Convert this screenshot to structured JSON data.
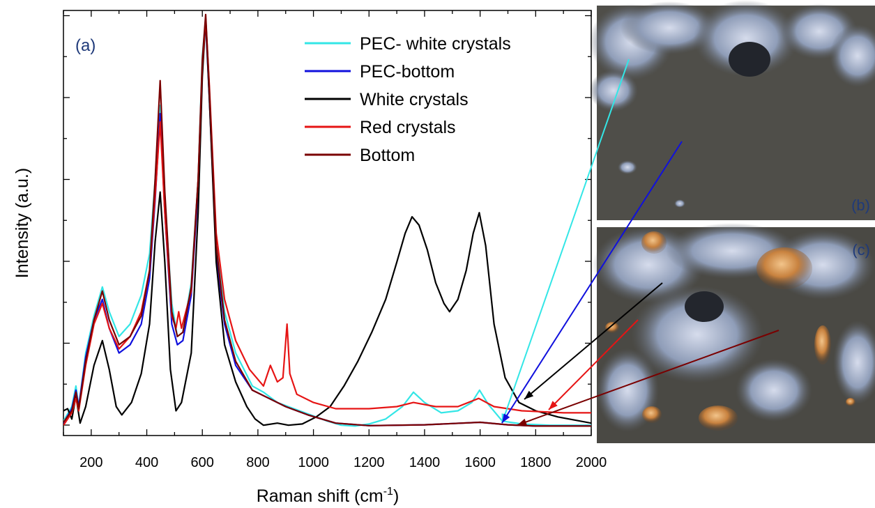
{
  "chart_data": {
    "type": "line",
    "panel_label": "(a)",
    "xlabel": "Raman shift (cm",
    "xlabel_sup": "-1",
    "xlabel_tail": ")",
    "ylabel": "Intensity (a.u.)",
    "xlim": [
      100,
      2000
    ],
    "ylim": [
      -0.02,
      1.01
    ],
    "x_ticks": [
      "200",
      "400",
      "600",
      "800",
      "1000",
      "1200",
      "1400",
      "1600",
      "1800",
      "2000"
    ],
    "y_tick_labels_shown": false,
    "legend_position": "top-right",
    "series": [
      {
        "name": "PEC- white crystals",
        "color": "#33e6e6",
        "points": [
          [
            100,
            0.015
          ],
          [
            130,
            0.05
          ],
          [
            145,
            0.1
          ],
          [
            155,
            0.05
          ],
          [
            180,
            0.18
          ],
          [
            210,
            0.27
          ],
          [
            240,
            0.34
          ],
          [
            265,
            0.28
          ],
          [
            300,
            0.22
          ],
          [
            340,
            0.25
          ],
          [
            380,
            0.32
          ],
          [
            410,
            0.42
          ],
          [
            430,
            0.6
          ],
          [
            448,
            0.78
          ],
          [
            465,
            0.55
          ],
          [
            490,
            0.3
          ],
          [
            510,
            0.22
          ],
          [
            530,
            0.23
          ],
          [
            560,
            0.35
          ],
          [
            585,
            0.6
          ],
          [
            600,
            0.9
          ],
          [
            612,
            0.99
          ],
          [
            625,
            0.82
          ],
          [
            650,
            0.45
          ],
          [
            680,
            0.28
          ],
          [
            720,
            0.18
          ],
          [
            780,
            0.1
          ],
          [
            820,
            0.085
          ],
          [
            870,
            0.06
          ],
          [
            950,
            0.04
          ],
          [
            1050,
            0.015
          ],
          [
            1100,
            0.005
          ],
          [
            1150,
            0.003
          ],
          [
            1200,
            0.008
          ],
          [
            1260,
            0.02
          ],
          [
            1320,
            0.05
          ],
          [
            1360,
            0.085
          ],
          [
            1400,
            0.06
          ],
          [
            1460,
            0.035
          ],
          [
            1520,
            0.04
          ],
          [
            1570,
            0.06
          ],
          [
            1598,
            0.09
          ],
          [
            1630,
            0.055
          ],
          [
            1680,
            0.015
          ],
          [
            1750,
            0.008
          ],
          [
            1850,
            0.005
          ],
          [
            2000,
            0.005
          ]
        ]
      },
      {
        "name": "PEC-bottom",
        "color": "#1010dd",
        "points": [
          [
            100,
            0.01
          ],
          [
            130,
            0.045
          ],
          [
            145,
            0.09
          ],
          [
            155,
            0.05
          ],
          [
            180,
            0.17
          ],
          [
            210,
            0.26
          ],
          [
            240,
            0.31
          ],
          [
            265,
            0.24
          ],
          [
            300,
            0.18
          ],
          [
            340,
            0.2
          ],
          [
            380,
            0.25
          ],
          [
            410,
            0.36
          ],
          [
            430,
            0.55
          ],
          [
            448,
            0.76
          ],
          [
            465,
            0.52
          ],
          [
            490,
            0.25
          ],
          [
            510,
            0.2
          ],
          [
            530,
            0.21
          ],
          [
            560,
            0.32
          ],
          [
            585,
            0.58
          ],
          [
            600,
            0.88
          ],
          [
            612,
            0.98
          ],
          [
            625,
            0.8
          ],
          [
            650,
            0.42
          ],
          [
            680,
            0.25
          ],
          [
            720,
            0.15
          ],
          [
            780,
            0.09
          ],
          [
            840,
            0.07
          ],
          [
            900,
            0.05
          ],
          [
            980,
            0.03
          ],
          [
            1080,
            0.01
          ],
          [
            1200,
            0.004
          ],
          [
            1400,
            0.006
          ],
          [
            1600,
            0.012
          ],
          [
            1700,
            0.006
          ],
          [
            1800,
            0.003
          ],
          [
            2000,
            0.003
          ]
        ]
      },
      {
        "name": "White crystals",
        "color": "#000000",
        "points": [
          [
            100,
            0.04
          ],
          [
            115,
            0.045
          ],
          [
            130,
            0.02
          ],
          [
            145,
            0.075
          ],
          [
            160,
            0.01
          ],
          [
            180,
            0.05
          ],
          [
            210,
            0.15
          ],
          [
            240,
            0.21
          ],
          [
            265,
            0.14
          ],
          [
            290,
            0.05
          ],
          [
            310,
            0.03
          ],
          [
            345,
            0.06
          ],
          [
            380,
            0.13
          ],
          [
            410,
            0.25
          ],
          [
            430,
            0.45
          ],
          [
            448,
            0.57
          ],
          [
            465,
            0.4
          ],
          [
            485,
            0.14
          ],
          [
            505,
            0.04
          ],
          [
            525,
            0.06
          ],
          [
            560,
            0.18
          ],
          [
            585,
            0.52
          ],
          [
            600,
            0.85
          ],
          [
            612,
            0.99
          ],
          [
            625,
            0.8
          ],
          [
            650,
            0.4
          ],
          [
            680,
            0.2
          ],
          [
            720,
            0.11
          ],
          [
            760,
            0.05
          ],
          [
            790,
            0.02
          ],
          [
            820,
            0.005
          ],
          [
            870,
            0.01
          ],
          [
            910,
            0.005
          ],
          [
            960,
            0.008
          ],
          [
            1010,
            0.025
          ],
          [
            1060,
            0.05
          ],
          [
            1110,
            0.1
          ],
          [
            1160,
            0.16
          ],
          [
            1210,
            0.23
          ],
          [
            1260,
            0.31
          ],
          [
            1300,
            0.4
          ],
          [
            1330,
            0.47
          ],
          [
            1355,
            0.51
          ],
          [
            1380,
            0.49
          ],
          [
            1410,
            0.43
          ],
          [
            1440,
            0.35
          ],
          [
            1470,
            0.3
          ],
          [
            1490,
            0.28
          ],
          [
            1520,
            0.31
          ],
          [
            1550,
            0.38
          ],
          [
            1575,
            0.47
          ],
          [
            1597,
            0.52
          ],
          [
            1620,
            0.44
          ],
          [
            1650,
            0.25
          ],
          [
            1690,
            0.12
          ],
          [
            1740,
            0.06
          ],
          [
            1800,
            0.04
          ],
          [
            1880,
            0.025
          ],
          [
            2000,
            0.01
          ]
        ]
      },
      {
        "name": "Red crystals",
        "color": "#e61414",
        "points": [
          [
            100,
            0.005
          ],
          [
            130,
            0.035
          ],
          [
            145,
            0.07
          ],
          [
            155,
            0.04
          ],
          [
            180,
            0.15
          ],
          [
            210,
            0.25
          ],
          [
            240,
            0.3
          ],
          [
            265,
            0.24
          ],
          [
            300,
            0.19
          ],
          [
            340,
            0.22
          ],
          [
            380,
            0.28
          ],
          [
            410,
            0.38
          ],
          [
            430,
            0.56
          ],
          [
            448,
            0.74
          ],
          [
            465,
            0.52
          ],
          [
            490,
            0.27
          ],
          [
            505,
            0.24
          ],
          [
            515,
            0.28
          ],
          [
            525,
            0.24
          ],
          [
            560,
            0.33
          ],
          [
            585,
            0.6
          ],
          [
            600,
            0.88
          ],
          [
            612,
            0.99
          ],
          [
            625,
            0.83
          ],
          [
            650,
            0.47
          ],
          [
            680,
            0.31
          ],
          [
            720,
            0.21
          ],
          [
            770,
            0.14
          ],
          [
            820,
            0.1
          ],
          [
            845,
            0.15
          ],
          [
            870,
            0.11
          ],
          [
            890,
            0.12
          ],
          [
            905,
            0.25
          ],
          [
            915,
            0.13
          ],
          [
            940,
            0.08
          ],
          [
            1000,
            0.06
          ],
          [
            1080,
            0.045
          ],
          [
            1200,
            0.045
          ],
          [
            1300,
            0.05
          ],
          [
            1360,
            0.06
          ],
          [
            1440,
            0.05
          ],
          [
            1520,
            0.05
          ],
          [
            1595,
            0.07
          ],
          [
            1650,
            0.05
          ],
          [
            1750,
            0.04
          ],
          [
            1900,
            0.035
          ],
          [
            2000,
            0.035
          ]
        ]
      },
      {
        "name": "Bottom",
        "color": "#7a0000",
        "points": [
          [
            100,
            0.012
          ],
          [
            130,
            0.04
          ],
          [
            145,
            0.085
          ],
          [
            155,
            0.045
          ],
          [
            180,
            0.16
          ],
          [
            210,
            0.26
          ],
          [
            240,
            0.33
          ],
          [
            265,
            0.26
          ],
          [
            300,
            0.2
          ],
          [
            340,
            0.22
          ],
          [
            380,
            0.27
          ],
          [
            410,
            0.38
          ],
          [
            430,
            0.6
          ],
          [
            448,
            0.84
          ],
          [
            465,
            0.57
          ],
          [
            490,
            0.28
          ],
          [
            510,
            0.22
          ],
          [
            530,
            0.23
          ],
          [
            560,
            0.34
          ],
          [
            585,
            0.6
          ],
          [
            600,
            0.89
          ],
          [
            612,
            1.0
          ],
          [
            625,
            0.82
          ],
          [
            650,
            0.44
          ],
          [
            680,
            0.26
          ],
          [
            720,
            0.16
          ],
          [
            780,
            0.09
          ],
          [
            840,
            0.07
          ],
          [
            900,
            0.05
          ],
          [
            980,
            0.03
          ],
          [
            1080,
            0.01
          ],
          [
            1200,
            0.004
          ],
          [
            1400,
            0.006
          ],
          [
            1600,
            0.012
          ],
          [
            1700,
            0.006
          ],
          [
            1800,
            0.003
          ],
          [
            2000,
            0.003
          ]
        ]
      }
    ]
  },
  "micrographs": {
    "panel_b_label": "(b)",
    "panel_c_label": "(c)",
    "panel_label_color": "#1f3a7a"
  }
}
